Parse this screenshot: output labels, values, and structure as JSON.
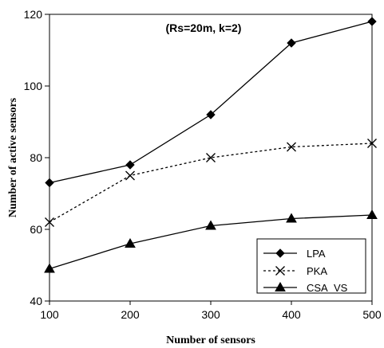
{
  "chart_data": {
    "type": "line",
    "title": "",
    "annotation": "(Rs=20m, k=2)",
    "xlabel": "Number of sensors",
    "ylabel": "Number of active sensors",
    "x": [
      100,
      200,
      300,
      400,
      500
    ],
    "xticks": [
      "100",
      "200",
      "300",
      "400",
      "500"
    ],
    "xlim": [
      100,
      500
    ],
    "ylim": [
      40,
      120
    ],
    "yticks": [
      "40",
      "60",
      "80",
      "100",
      "120"
    ],
    "yticks_values": [
      40,
      60,
      80,
      100,
      120
    ],
    "grid": false,
    "legend_position": "bottom-right",
    "series": [
      {
        "name": "LPA",
        "values": [
          73,
          78,
          92,
          112,
          118
        ],
        "color": "#000000",
        "line_style": "solid",
        "marker": "diamond"
      },
      {
        "name": "PKA",
        "values": [
          62,
          75,
          80,
          83,
          84
        ],
        "color": "#000000",
        "line_style": "dotted",
        "marker": "x"
      },
      {
        "name": "CSA_VS",
        "values": [
          49,
          56,
          61,
          63,
          64
        ],
        "color": "#000000",
        "line_style": "solid",
        "marker": "triangle"
      }
    ]
  }
}
